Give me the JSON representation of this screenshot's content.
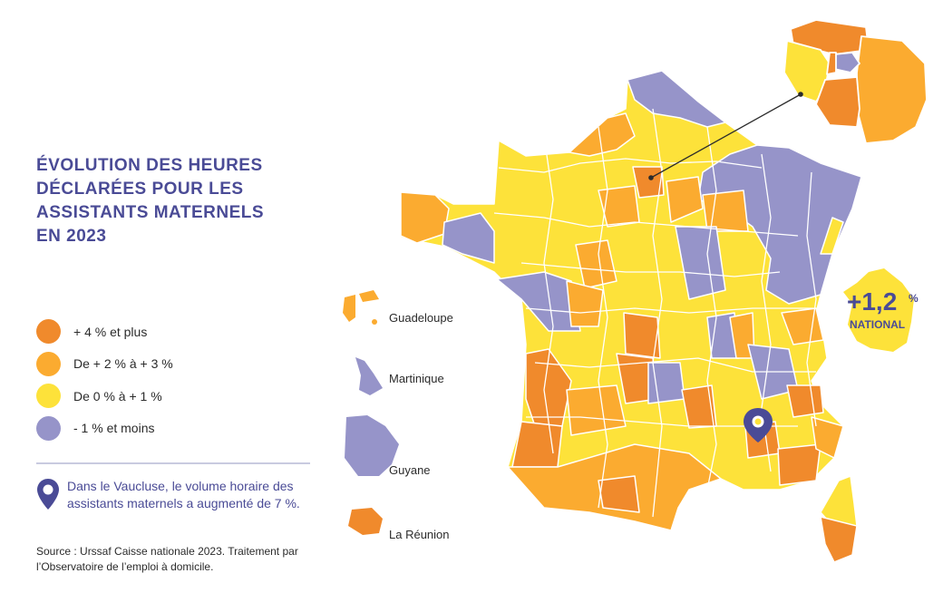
{
  "title": {
    "line1": "ÉVOLUTION DES HEURES",
    "line2": "DÉCLARÉES POUR LES",
    "line3": "ASSISTANTS MATERNELS",
    "line4": "EN 2023"
  },
  "legend": [
    {
      "label": "+ 4 % et plus",
      "color": "#f08a2c"
    },
    {
      "label": "De + 2 % à + 3 %",
      "color": "#fbab30"
    },
    {
      "label": "De 0 % à + 1 %",
      "color": "#fde23a"
    },
    {
      "label": "- 1 % et moins",
      "color": "#9694c9"
    }
  ],
  "note": "Dans le Vaucluse, le volume horaire des assistants maternels a augmenté de 7 %.",
  "source": "Source : Urssaf Caisse nationale 2023. Traitement par l’Observatoire de l’emploi à domicile.",
  "overseas": {
    "guadeloupe": "Guadeloupe",
    "martinique": "Martinique",
    "guyane": "Guyane",
    "reunion": "La Réunion"
  },
  "national": {
    "value": "+1,2",
    "unit": "%",
    "label": "NATIONAL"
  },
  "colors": {
    "title": "#4a4b96",
    "border": "#ffffff"
  }
}
